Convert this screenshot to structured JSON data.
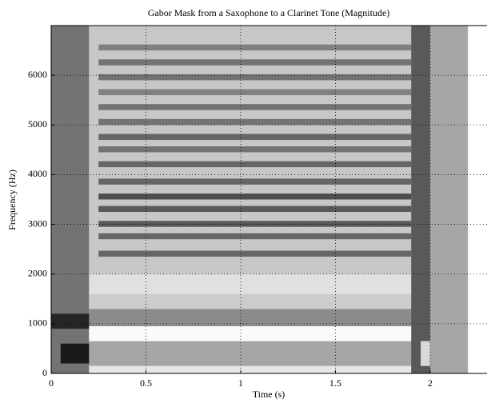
{
  "chart_data": {
    "type": "spectrogram",
    "title": "Gabor Mask from a Saxophone to a Clarinet Tone (Magnitude)",
    "x_label": "Time (s)",
    "y_label": "Frequency (Hz)",
    "xlim": [
      0,
      2.3
    ],
    "ylim": [
      0,
      7000
    ],
    "xticks": [
      0,
      0.5,
      1,
      1.5,
      2
    ],
    "yticks": [
      0,
      1000,
      2000,
      3000,
      4000,
      5000,
      6000
    ],
    "grid": true,
    "regions": [
      {
        "t": [
          0,
          0.2
        ],
        "f": [
          0,
          7000
        ],
        "level": 0.55
      },
      {
        "t": [
          0.05,
          0.2
        ],
        "f": [
          200,
          600
        ],
        "level": 0.9
      },
      {
        "t": [
          0,
          0.2
        ],
        "f": [
          900,
          1200
        ],
        "level": 0.85
      },
      {
        "t": [
          0.2,
          1.95
        ],
        "f": [
          0,
          150
        ],
        "level": 0.1
      },
      {
        "t": [
          0.2,
          1.95
        ],
        "f": [
          150,
          650
        ],
        "level": 0.35
      },
      {
        "t": [
          0.2,
          1.95
        ],
        "f": [
          650,
          950
        ],
        "level": 0.02
      },
      {
        "t": [
          0.2,
          1.95
        ],
        "f": [
          950,
          1300
        ],
        "level": 0.45
      },
      {
        "t": [
          0.2,
          1.95
        ],
        "f": [
          1300,
          1600
        ],
        "level": 0.2
      },
      {
        "t": [
          0.2,
          1.95
        ],
        "f": [
          1600,
          2000
        ],
        "level": 0.12
      },
      {
        "t": [
          0.2,
          1.95
        ],
        "f": [
          2000,
          7000
        ],
        "level": 0.22
      },
      {
        "t": [
          0.25,
          1.9
        ],
        "f": [
          2350,
          2470
        ],
        "level": 0.6
      },
      {
        "t": [
          0.25,
          1.9
        ],
        "f": [
          2700,
          2820
        ],
        "level": 0.6
      },
      {
        "t": [
          0.25,
          1.9
        ],
        "f": [
          2950,
          3070
        ],
        "level": 0.65
      },
      {
        "t": [
          0.25,
          1.9
        ],
        "f": [
          3250,
          3370
        ],
        "level": 0.65
      },
      {
        "t": [
          0.25,
          1.9
        ],
        "f": [
          3500,
          3620
        ],
        "level": 0.7
      },
      {
        "t": [
          0.25,
          1.9
        ],
        "f": [
          3800,
          3920
        ],
        "level": 0.6
      },
      {
        "t": [
          0.25,
          1.9
        ],
        "f": [
          4150,
          4270
        ],
        "level": 0.6
      },
      {
        "t": [
          0.25,
          1.9
        ],
        "f": [
          4450,
          4570
        ],
        "level": 0.55
      },
      {
        "t": [
          0.25,
          1.9
        ],
        "f": [
          4700,
          4820
        ],
        "level": 0.6
      },
      {
        "t": [
          0.25,
          1.9
        ],
        "f": [
          5000,
          5120
        ],
        "level": 0.55
      },
      {
        "t": [
          0.25,
          1.9
        ],
        "f": [
          5300,
          5420
        ],
        "level": 0.55
      },
      {
        "t": [
          0.25,
          1.9
        ],
        "f": [
          5600,
          5720
        ],
        "level": 0.5
      },
      {
        "t": [
          0.25,
          1.9
        ],
        "f": [
          5900,
          6020
        ],
        "level": 0.55
      },
      {
        "t": [
          0.25,
          1.9
        ],
        "f": [
          6200,
          6320
        ],
        "level": 0.55
      },
      {
        "t": [
          0.25,
          1.9
        ],
        "f": [
          6500,
          6620
        ],
        "level": 0.5
      },
      {
        "t": [
          1.9,
          2.0
        ],
        "f": [
          0,
          7000
        ],
        "level": 0.65
      },
      {
        "t": [
          1.95,
          2.0
        ],
        "f": [
          150,
          650
        ],
        "level": 0.15
      },
      {
        "t": [
          2.0,
          2.2
        ],
        "f": [
          0,
          7000
        ],
        "level": 0.35
      },
      {
        "t": [
          2.2,
          2.3
        ],
        "f": [
          0,
          7000
        ],
        "level": 0.0
      }
    ]
  }
}
